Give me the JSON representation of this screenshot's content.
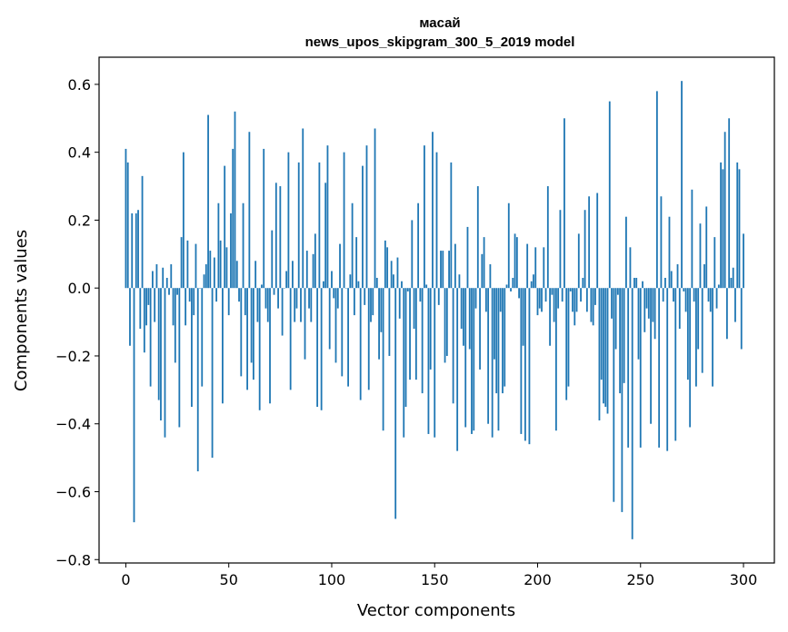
{
  "chart_data": {
    "type": "bar",
    "title": "масай",
    "subtitle": "news_upos_skipgram_300_5_2019 model",
    "xlabel": "Vector components",
    "ylabel": "Components values",
    "xlim": [
      -13,
      315
    ],
    "ylim": [
      -0.81,
      0.68
    ],
    "xticks": [
      0,
      50,
      100,
      150,
      200,
      250,
      300
    ],
    "yticks": [
      -0.8,
      -0.6,
      -0.4,
      -0.2,
      0.0,
      0.2,
      0.4,
      0.6
    ],
    "ytick_labels": [
      "−0.8",
      "−0.6",
      "−0.4",
      "−0.2",
      "0.0",
      "0.2",
      "0.4",
      "0.6"
    ],
    "xtick_labels": [
      "0",
      "50",
      "100",
      "150",
      "200",
      "250",
      "300"
    ],
    "bar_color": "#1f77b4",
    "grid": false,
    "values": [
      0.41,
      0.37,
      -0.17,
      0.22,
      -0.69,
      0.22,
      0.23,
      -0.12,
      0.33,
      -0.19,
      -0.11,
      -0.05,
      -0.29,
      0.05,
      -0.1,
      0.07,
      -0.33,
      -0.39,
      0.06,
      -0.44,
      0.03,
      -0.02,
      0.07,
      -0.11,
      -0.22,
      -0.02,
      -0.41,
      0.15,
      0.4,
      -0.11,
      0.14,
      -0.04,
      -0.35,
      -0.08,
      0.13,
      -0.54,
      0.0,
      -0.29,
      0.04,
      0.07,
      0.51,
      0.11,
      -0.5,
      0.09,
      -0.04,
      0.25,
      0.14,
      -0.34,
      0.36,
      0.12,
      -0.08,
      0.22,
      0.41,
      0.52,
      0.08,
      -0.04,
      -0.26,
      0.25,
      -0.08,
      -0.3,
      0.46,
      -0.22,
      -0.27,
      0.08,
      -0.1,
      -0.36,
      0.01,
      0.41,
      -0.06,
      -0.1,
      -0.34,
      0.17,
      -0.02,
      0.31,
      -0.06,
      0.3,
      -0.14,
      0.0,
      0.05,
      0.4,
      -0.3,
      0.08,
      -0.1,
      -0.06,
      0.37,
      -0.1,
      0.47,
      -0.21,
      0.11,
      -0.06,
      -0.1,
      0.1,
      0.16,
      -0.35,
      0.37,
      -0.36,
      0.02,
      0.31,
      0.42,
      -0.18,
      0.05,
      -0.03,
      -0.22,
      -0.06,
      0.13,
      -0.26,
      0.4,
      0.0,
      -0.29,
      0.04,
      0.25,
      -0.08,
      0.15,
      0.02,
      -0.33,
      0.36,
      -0.05,
      0.42,
      -0.3,
      -0.1,
      -0.08,
      0.47,
      0.03,
      -0.21,
      -0.13,
      -0.42,
      0.14,
      0.12,
      -0.2,
      0.08,
      0.04,
      -0.68,
      0.09,
      -0.09,
      0.02,
      -0.44,
      -0.35,
      -0.01,
      -0.27,
      0.2,
      -0.12,
      -0.27,
      0.25,
      -0.04,
      -0.31,
      0.42,
      0.01,
      -0.43,
      -0.24,
      0.46,
      -0.44,
      0.4,
      -0.05,
      0.11,
      0.11,
      -0.22,
      -0.2,
      0.11,
      0.37,
      -0.34,
      0.13,
      -0.48,
      0.04,
      -0.12,
      -0.17,
      -0.41,
      0.18,
      -0.18,
      -0.43,
      -0.42,
      -0.06,
      0.3,
      -0.24,
      0.1,
      0.15,
      -0.07,
      -0.4,
      0.07,
      -0.44,
      -0.21,
      -0.31,
      -0.42,
      -0.07,
      -0.31,
      -0.29,
      0.01,
      0.25,
      -0.01,
      0.03,
      0.16,
      0.15,
      -0.03,
      -0.43,
      -0.17,
      -0.45,
      0.13,
      -0.46,
      0.02,
      0.04,
      0.12,
      -0.08,
      -0.06,
      -0.07,
      0.12,
      -0.04,
      0.3,
      -0.17,
      -0.02,
      -0.1,
      -0.42,
      -0.06,
      0.23,
      -0.04,
      0.5,
      -0.33,
      -0.29,
      -0.01,
      -0.07,
      -0.11,
      -0.07,
      0.16,
      -0.04,
      0.03,
      0.23,
      -0.07,
      0.27,
      -0.1,
      -0.11,
      -0.05,
      0.28,
      -0.39,
      -0.27,
      -0.34,
      -0.35,
      -0.37,
      0.55,
      -0.09,
      -0.63,
      -0.18,
      -0.02,
      -0.31,
      -0.66,
      -0.28,
      0.21,
      -0.47,
      0.12,
      -0.74,
      0.03,
      0.03,
      -0.21,
      -0.47,
      0.02,
      -0.13,
      -0.06,
      -0.09,
      -0.4,
      -0.1,
      -0.15,
      0.58,
      -0.47,
      0.27,
      -0.04,
      0.03,
      -0.48,
      0.21,
      0.05,
      -0.04,
      -0.45,
      0.07,
      -0.12,
      0.61,
      -0.01,
      -0.07,
      -0.27,
      -0.41,
      0.29,
      -0.04,
      -0.29,
      -0.18,
      0.19,
      -0.25,
      0.07,
      0.24,
      -0.04,
      -0.07,
      -0.29,
      0.15,
      -0.06,
      0.01,
      0.37,
      0.35,
      0.46,
      -0.15,
      0.5,
      0.03,
      0.06,
      -0.1,
      0.37,
      0.35,
      -0.18,
      0.16
    ]
  }
}
